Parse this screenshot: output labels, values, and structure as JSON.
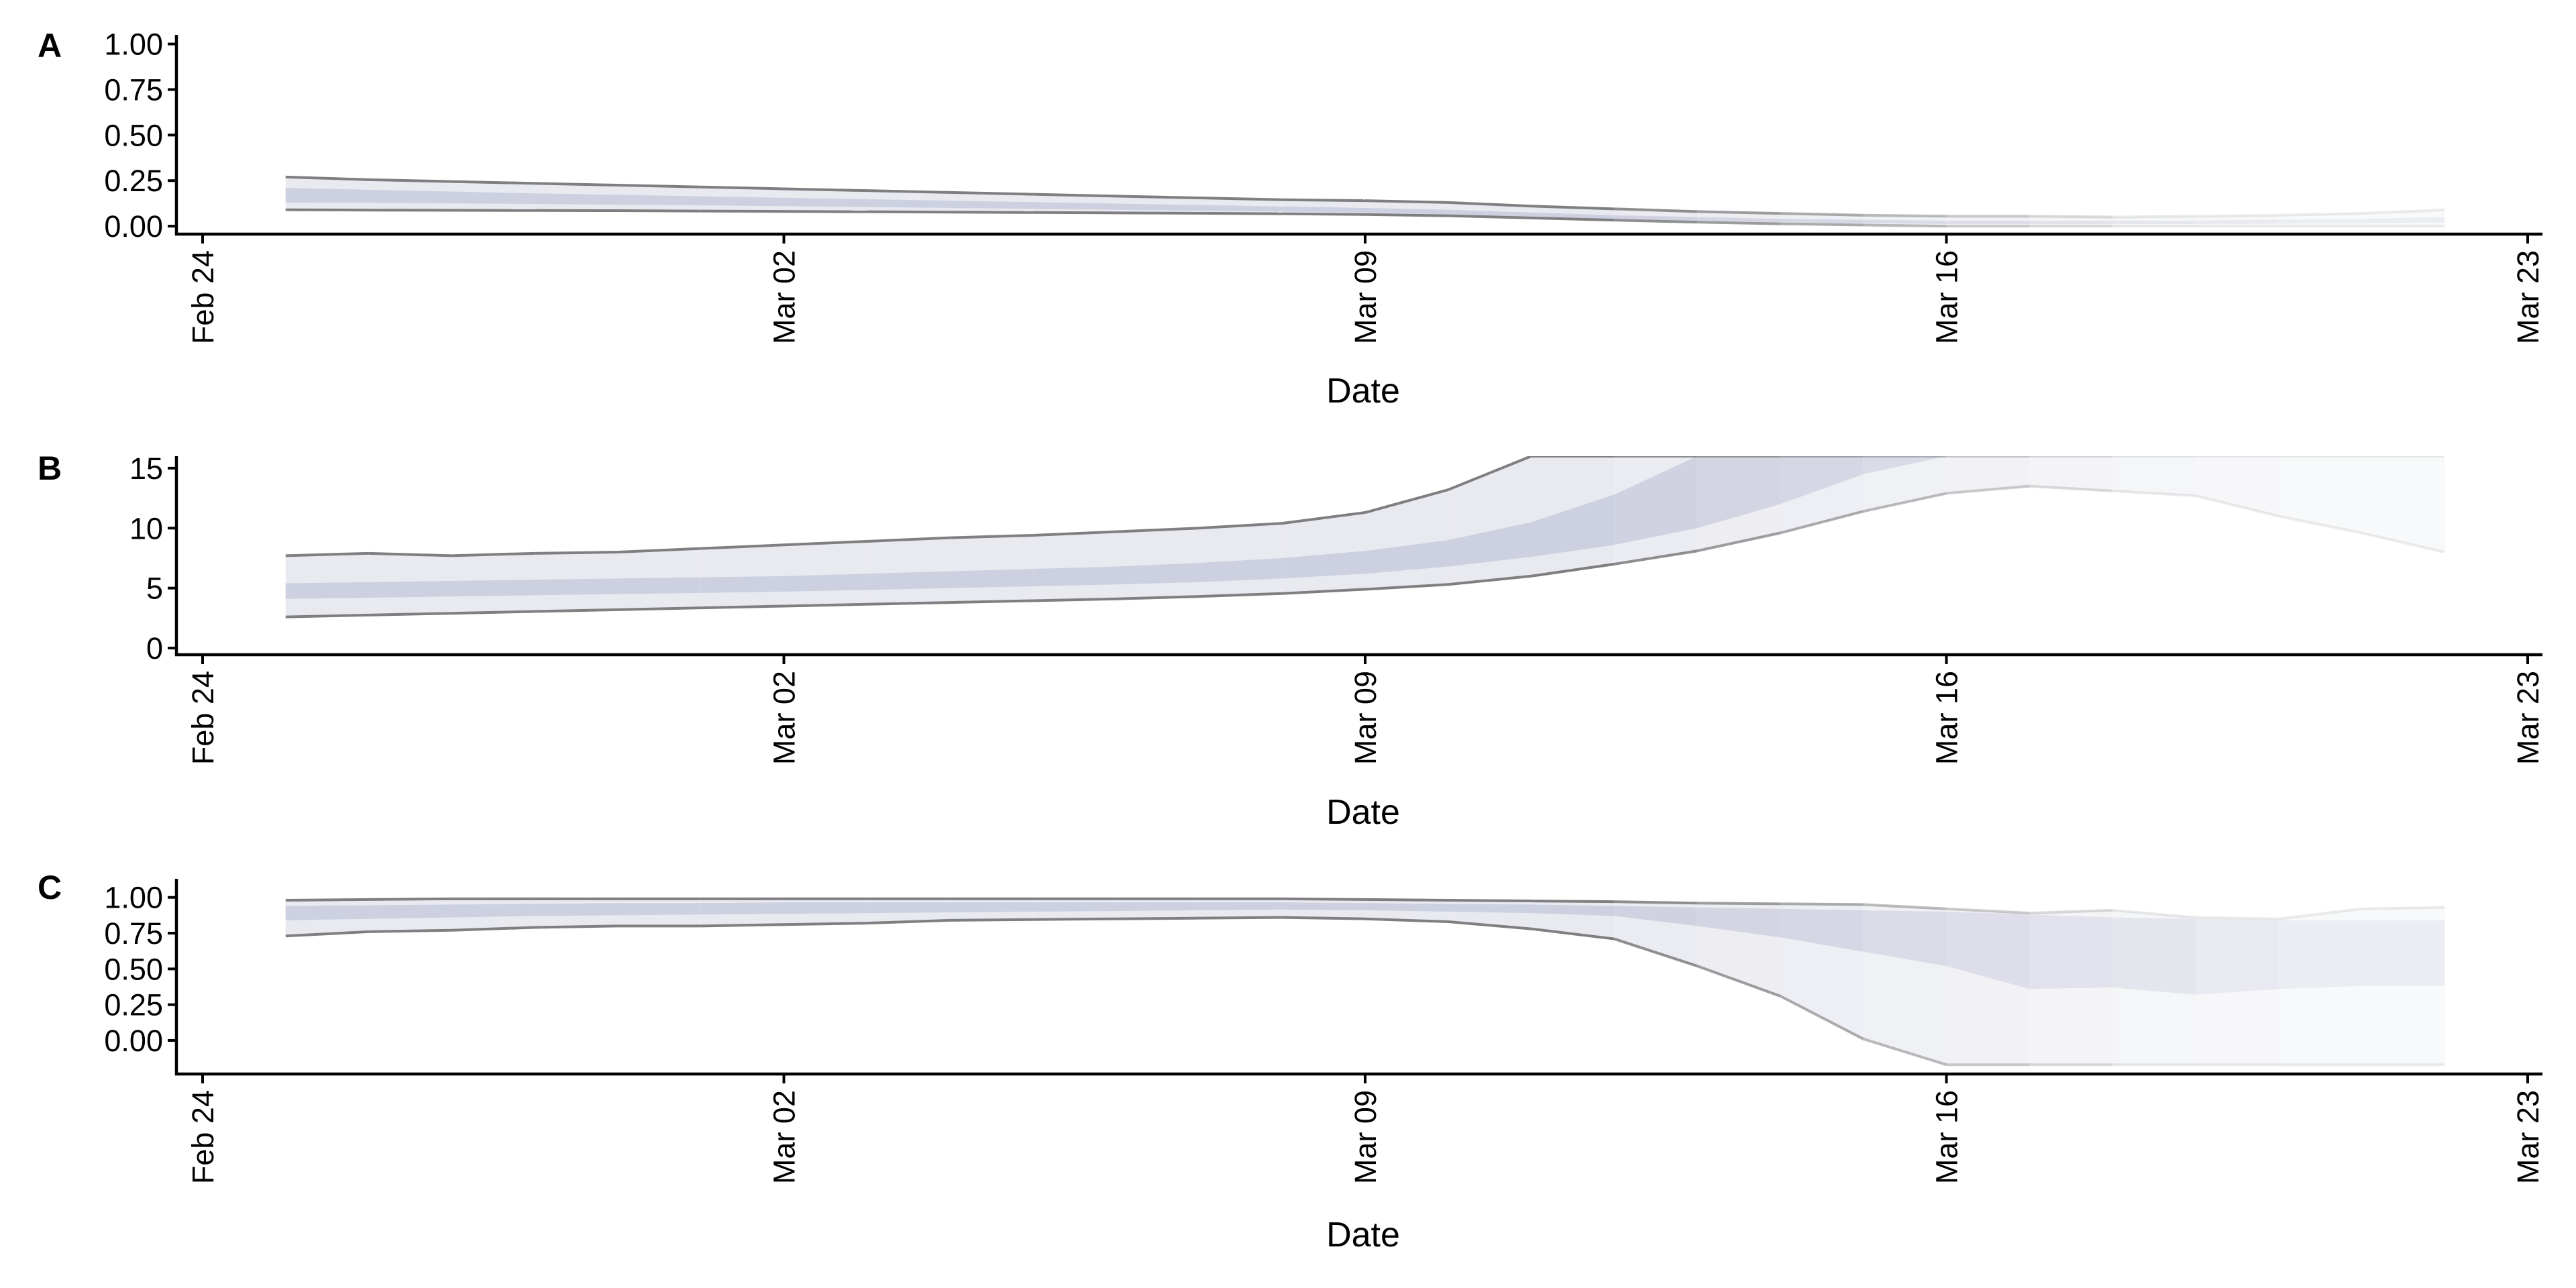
{
  "figure": {
    "x_dates": [
      "Feb 25",
      "Feb 26",
      "Feb 27",
      "Feb 28",
      "Feb 29",
      "Mar 01",
      "Mar 02",
      "Mar 03",
      "Mar 04",
      "Mar 05",
      "Mar 06",
      "Mar 07",
      "Mar 08",
      "Mar 09",
      "Mar 10",
      "Mar 11",
      "Mar 12",
      "Mar 13",
      "Mar 14",
      "Mar 15",
      "Mar 16",
      "Mar 17",
      "Mar 18",
      "Mar 19",
      "Mar 20",
      "Mar 21",
      "Mar 22"
    ],
    "band_colors": {
      "outer": "#e9eaf0",
      "inner": "#c8cbdd",
      "bound_line": "#7f7f82"
    }
  },
  "chart_data": [
    {
      "type": "area",
      "panel_tag": "A",
      "xlabel": "Date",
      "ylabel": "",
      "x_ticks": [
        "Feb 24",
        "Mar 02",
        "Mar 09",
        "Mar 16",
        "Mar 23"
      ],
      "x_range": [
        "Feb 24",
        "Mar 23"
      ],
      "y_ticks": [
        "0.00",
        "0.25",
        "0.50",
        "0.75",
        "1.00"
      ],
      "ylim": [
        -0.04,
        1.05
      ],
      "grid": false,
      "legend": "none",
      "series": [
        {
          "key": "outer_upper",
          "values": [
            0.27,
            0.255,
            0.245,
            0.235,
            0.225,
            0.215,
            0.205,
            0.195,
            0.185,
            0.175,
            0.165,
            0.155,
            0.145,
            0.14,
            0.13,
            0.11,
            0.095,
            0.08,
            0.07,
            0.06,
            0.055,
            0.055,
            0.05,
            0.055,
            0.06,
            0.07,
            0.09
          ]
        },
        {
          "key": "inner_upper",
          "values": [
            0.21,
            0.2,
            0.19,
            0.18,
            0.172,
            0.164,
            0.156,
            0.148,
            0.14,
            0.132,
            0.124,
            0.116,
            0.108,
            0.1,
            0.09,
            0.075,
            0.06,
            0.05,
            0.04,
            0.035,
            0.03,
            0.03,
            0.03,
            0.03,
            0.035,
            0.04,
            0.05
          ]
        },
        {
          "key": "inner_lower",
          "values": [
            0.13,
            0.128,
            0.125,
            0.122,
            0.118,
            0.114,
            0.11,
            0.105,
            0.1,
            0.095,
            0.09,
            0.085,
            0.08,
            0.075,
            0.065,
            0.052,
            0.04,
            0.03,
            0.022,
            0.016,
            0.012,
            0.012,
            0.012,
            0.012,
            0.014,
            0.016,
            0.02
          ]
        },
        {
          "key": "outer_lower",
          "values": [
            0.09,
            0.088,
            0.087,
            0.086,
            0.085,
            0.083,
            0.081,
            0.079,
            0.077,
            0.075,
            0.073,
            0.071,
            0.068,
            0.064,
            0.057,
            0.045,
            0.033,
            0.022,
            0.013,
            0.006,
            0.0,
            0.0,
            0.0,
            0.0,
            0.0,
            0.0,
            0.0
          ]
        }
      ]
    },
    {
      "type": "area",
      "panel_tag": "B",
      "xlabel": "Date",
      "ylabel": "",
      "x_ticks": [
        "Feb 24",
        "Mar 02",
        "Mar 09",
        "Mar 16",
        "Mar 23"
      ],
      "x_range": [
        "Feb 24",
        "Mar 23"
      ],
      "y_ticks": [
        "0",
        "5",
        "10",
        "15"
      ],
      "ylim": [
        -0.5,
        16.0
      ],
      "grid": false,
      "legend": "none",
      "series": [
        {
          "key": "outer_upper",
          "values": [
            7.7,
            7.9,
            7.7,
            7.9,
            8.0,
            8.3,
            8.6,
            8.9,
            9.2,
            9.4,
            9.7,
            10.0,
            10.4,
            11.3,
            13.2,
            16.0,
            16.0,
            16.0,
            16.0,
            16.0,
            16.0,
            16.0,
            16.0,
            16.0,
            16.0,
            16.0,
            16.0
          ]
        },
        {
          "key": "inner_upper",
          "values": [
            5.4,
            5.5,
            5.6,
            5.7,
            5.8,
            5.9,
            6.0,
            6.2,
            6.4,
            6.6,
            6.8,
            7.1,
            7.5,
            8.1,
            9.0,
            10.5,
            12.8,
            16.0,
            16.0,
            16.0,
            16.0,
            16.0,
            16.0,
            16.0,
            16.0,
            16.0,
            13.5
          ]
        },
        {
          "key": "inner_lower",
          "values": [
            4.1,
            4.2,
            4.3,
            4.4,
            4.5,
            4.6,
            4.7,
            4.85,
            5.0,
            5.15,
            5.3,
            5.5,
            5.8,
            6.2,
            6.8,
            7.6,
            8.6,
            10.0,
            12.0,
            14.5,
            16.0,
            16.0,
            16.0,
            16.0,
            16.0,
            16.0,
            13.5
          ]
        },
        {
          "key": "outer_lower",
          "values": [
            2.6,
            2.75,
            2.9,
            3.05,
            3.2,
            3.35,
            3.5,
            3.65,
            3.8,
            3.95,
            4.1,
            4.3,
            4.55,
            4.9,
            5.3,
            6.0,
            7.0,
            8.1,
            9.6,
            11.4,
            12.9,
            13.5,
            13.1,
            12.7,
            11.0,
            9.6,
            8.0
          ]
        }
      ]
    },
    {
      "type": "area",
      "panel_tag": "C",
      "xlabel": "Date",
      "ylabel": "",
      "x_ticks": [
        "Feb 24",
        "Mar 02",
        "Mar 09",
        "Mar 16",
        "Mar 23"
      ],
      "x_range": [
        "Feb 24",
        "Mar 23"
      ],
      "y_ticks": [
        "0.00",
        "0.25",
        "0.50",
        "0.75",
        "1.00"
      ],
      "ylim": [
        -0.23,
        1.13
      ],
      "grid": false,
      "legend": "none",
      "series": [
        {
          "key": "outer_upper",
          "values": [
            0.98,
            0.985,
            0.99,
            0.99,
            0.99,
            0.99,
            0.99,
            0.99,
            0.99,
            0.99,
            0.99,
            0.99,
            0.99,
            0.985,
            0.98,
            0.975,
            0.97,
            0.96,
            0.955,
            0.95,
            0.92,
            0.89,
            0.91,
            0.86,
            0.85,
            0.92,
            0.93
          ]
        },
        {
          "key": "inner_upper",
          "values": [
            0.94,
            0.945,
            0.95,
            0.955,
            0.96,
            0.96,
            0.965,
            0.965,
            0.965,
            0.965,
            0.965,
            0.965,
            0.965,
            0.96,
            0.955,
            0.95,
            0.94,
            0.93,
            0.92,
            0.91,
            0.9,
            0.88,
            0.86,
            0.85,
            0.84,
            0.84,
            0.84
          ]
        },
        {
          "key": "inner_lower",
          "values": [
            0.84,
            0.85,
            0.86,
            0.87,
            0.875,
            0.88,
            0.885,
            0.89,
            0.895,
            0.9,
            0.905,
            0.91,
            0.915,
            0.91,
            0.9,
            0.89,
            0.87,
            0.8,
            0.72,
            0.62,
            0.52,
            0.36,
            0.37,
            0.32,
            0.36,
            0.38,
            0.38
          ]
        },
        {
          "key": "outer_lower",
          "values": [
            0.73,
            0.76,
            0.77,
            0.79,
            0.8,
            0.8,
            0.81,
            0.82,
            0.84,
            0.845,
            0.85,
            0.855,
            0.86,
            0.85,
            0.83,
            0.78,
            0.71,
            0.52,
            0.31,
            0.01,
            -0.17,
            -0.17,
            -0.17,
            -0.17,
            -0.17,
            -0.17,
            -0.17
          ]
        }
      ]
    }
  ]
}
